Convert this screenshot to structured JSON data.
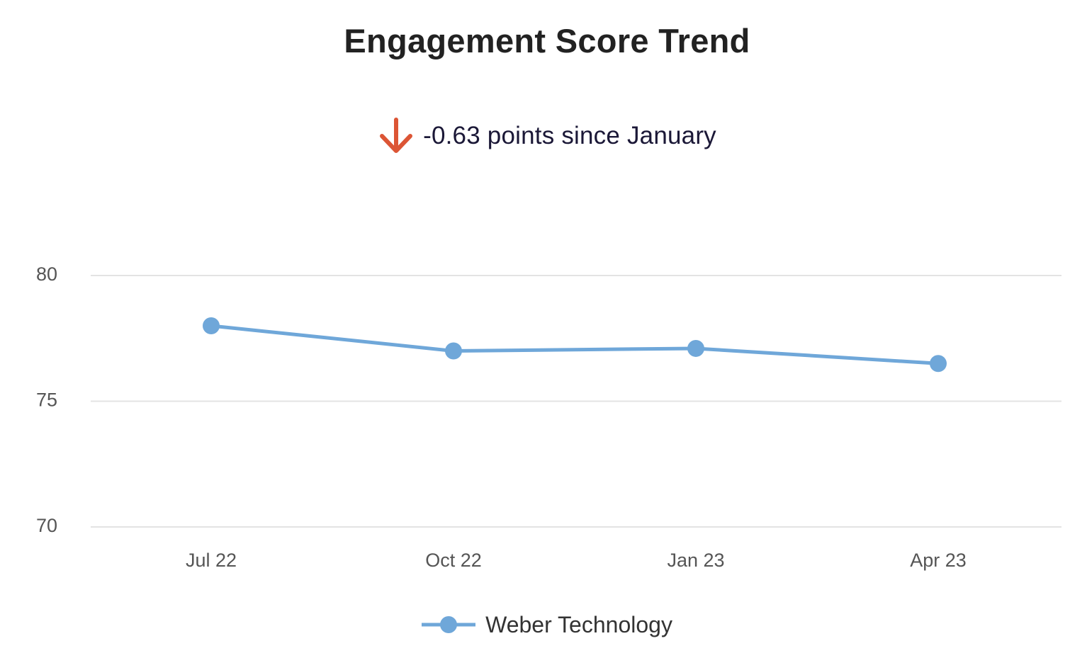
{
  "chart_data": {
    "type": "line",
    "title": "Engagement Score Trend",
    "subtitle": "-0.63 points since January",
    "subtitle_icon": "arrow-down-icon",
    "categories": [
      "Jul 22",
      "Oct 22",
      "Jan 23",
      "Apr 23"
    ],
    "series": [
      {
        "name": "Weber Technology",
        "values": [
          78.0,
          77.0,
          77.1,
          76.5
        ]
      }
    ],
    "ylim": [
      70,
      80
    ],
    "yticks": [
      70,
      75,
      80
    ],
    "grid": true,
    "legend_position": "bottom-center",
    "xlabel": "",
    "ylabel": ""
  },
  "colors": {
    "series": "#6fa7d9",
    "grid": "#e3e3e3",
    "title": "#222222",
    "subtitle": "#1b1837",
    "down_arrow": "#dc5535",
    "axis_text": "#555555"
  }
}
